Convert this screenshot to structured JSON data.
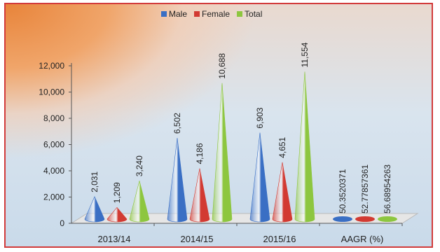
{
  "chart_data": {
    "type": "bar",
    "title": "",
    "xlabel": "",
    "ylabel": "",
    "categories": [
      "2013/14",
      "2014/15",
      "2015/16",
      "AAGR (%)"
    ],
    "series": [
      {
        "name": "Male",
        "color": "#3a6fc4",
        "values": [
          2031,
          6502,
          6903,
          50.3520371
        ],
        "labels": [
          "2,031",
          "6,502",
          "6,903",
          "50.3520371"
        ]
      },
      {
        "name": "Female",
        "color": "#d23a32",
        "values": [
          1209,
          4186,
          4651,
          52.77857361
        ],
        "labels": [
          "1,209",
          "4,186",
          "4,651",
          "52.77857361"
        ]
      },
      {
        "name": "Total",
        "color": "#8dc63f",
        "values": [
          3240,
          10688,
          11554,
          56.68954263
        ],
        "labels": [
          "3,240",
          "10,688",
          "11,554",
          "56.68954263"
        ]
      }
    ],
    "ylim": [
      0,
      12000
    ],
    "yticks": [
      "0",
      "2,000",
      "4,000",
      "6,000",
      "8,000",
      "10,000",
      "12,000"
    ],
    "legend_position": "top",
    "grid": false,
    "style": "3d-cone"
  }
}
